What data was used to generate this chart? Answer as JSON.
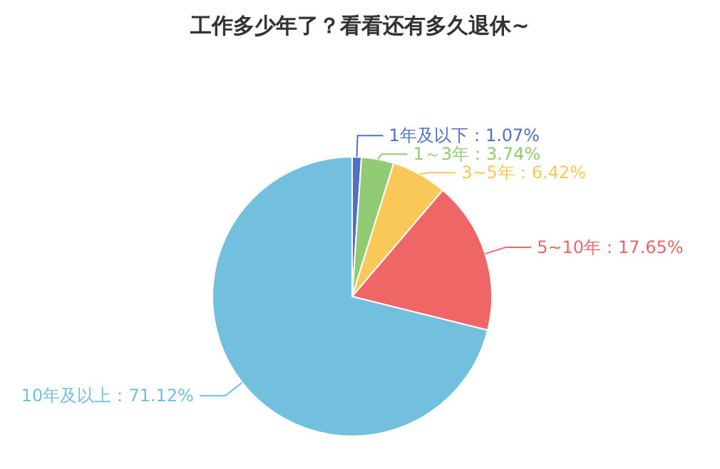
{
  "chart_data": {
    "type": "pie",
    "title": "工作多少年了？看看还有多久退休~",
    "categories": [
      "1年及以下",
      "1～3年",
      "3~5年",
      "5~10年",
      "10年及以上"
    ],
    "values": [
      1.07,
      3.74,
      6.42,
      17.65,
      71.12
    ],
    "colors": [
      "#5470c6",
      "#91cc75",
      "#fac858",
      "#ee6666",
      "#73c0de"
    ],
    "value_labels": [
      "：1.07%",
      "：3.74%",
      "：6.42%",
      "：17.65%",
      "：71.12%"
    ]
  }
}
